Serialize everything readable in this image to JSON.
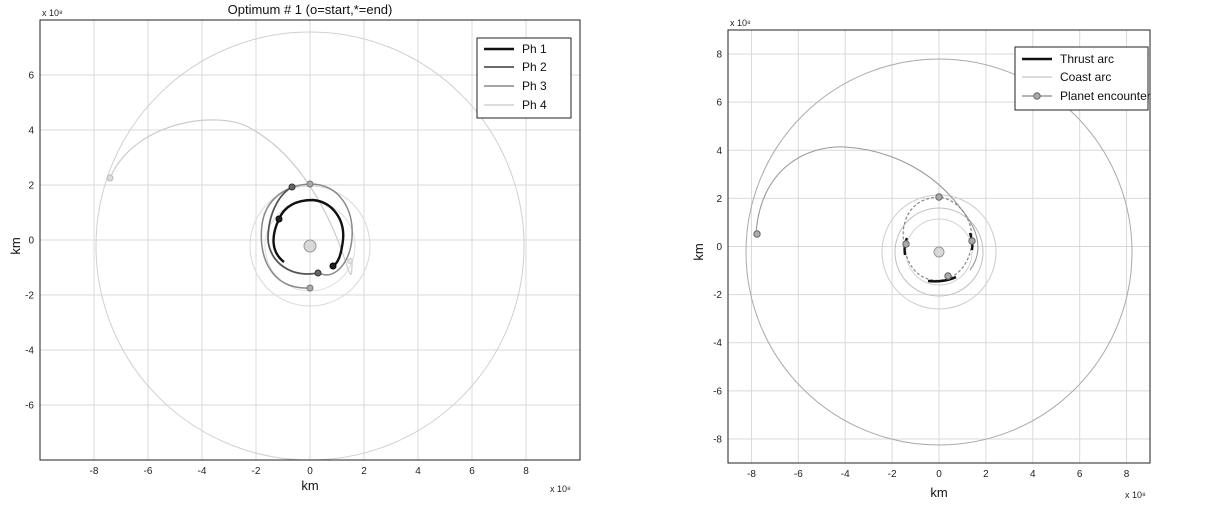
{
  "chart_data": [
    {
      "type": "line",
      "title": "Optimum # 1 (o=start,*=end)",
      "xlabel": "km",
      "ylabel": "km",
      "x_multiplier": "x 10⁸",
      "y_multiplier": "x 10⁸",
      "xlim": [
        -10,
        10
      ],
      "ylim": [
        -8,
        8
      ],
      "xticks": [
        -8,
        -6,
        -4,
        -2,
        0,
        2,
        4,
        6,
        8
      ],
      "yticks": [
        -6,
        -4,
        -2,
        0,
        2,
        4,
        6
      ],
      "grid": true,
      "legend": "top-right",
      "series": [
        {
          "name": "Ph 1",
          "color": "#111111"
        },
        {
          "name": "Ph 2",
          "color": "#555555"
        },
        {
          "name": "Ph 3",
          "color": "#888888"
        },
        {
          "name": "Ph 4",
          "color": "#c8c8c8"
        }
      ]
    },
    {
      "type": "line",
      "title": "",
      "xlabel": "km",
      "ylabel": "km",
      "x_multiplier": "x 10⁸",
      "y_multiplier": "x 10⁸",
      "xlim": [
        -9,
        9
      ],
      "ylim": [
        -9,
        9
      ],
      "xticks": [
        -8,
        -6,
        -4,
        -2,
        0,
        2,
        4,
        6,
        8
      ],
      "yticks": [
        -8,
        -6,
        -4,
        -2,
        0,
        2,
        4,
        6,
        8
      ],
      "grid": true,
      "legend": "top-right",
      "series": [
        {
          "name": "Thrust arc",
          "color": "#111111"
        },
        {
          "name": "Coast arc",
          "color": "#c8c8c8"
        },
        {
          "name": "Planet encounter",
          "color": "#888888"
        }
      ]
    }
  ]
}
